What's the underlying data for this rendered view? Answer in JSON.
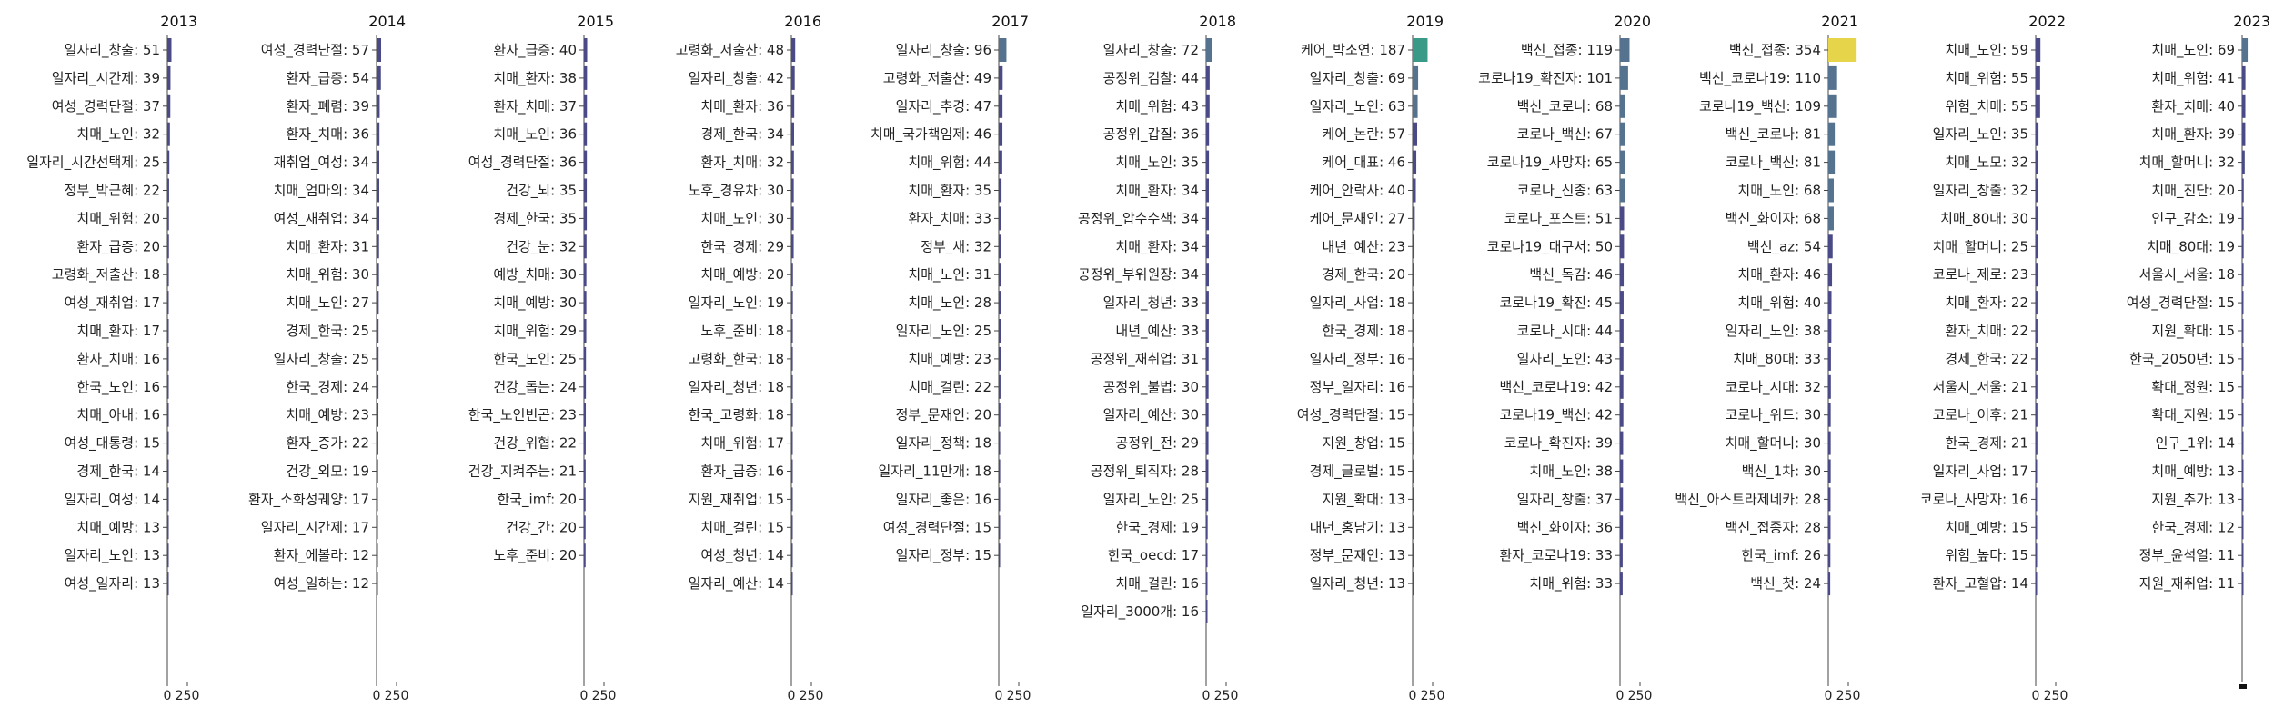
{
  "chart_data": [
    {
      "type": "bar",
      "orientation": "horizontal",
      "title": "2013",
      "categories": [
        "일자리_창출",
        "일자리_시간제",
        "여성_경력단절",
        "치매_노인",
        "일자리_시간선택제",
        "정부_박근혜",
        "치매_위험",
        "환자_급증",
        "고령화_저출산",
        "여성_재취업",
        "치매_환자",
        "환자_치매",
        "한국_노인",
        "치매_아내",
        "여성_대통령",
        "경제_한국",
        "일자리_여성",
        "치매_예방",
        "일자리_노인",
        "여성_일자리"
      ],
      "values": [
        51,
        39,
        37,
        32,
        25,
        22,
        20,
        20,
        18,
        17,
        17,
        16,
        16,
        16,
        15,
        14,
        14,
        13,
        13,
        13
      ],
      "xticks": [
        0,
        250
      ],
      "xlim": [
        0,
        420
      ]
    },
    {
      "type": "bar",
      "orientation": "horizontal",
      "title": "2014",
      "categories": [
        "여성_경력단절",
        "환자_급증",
        "환자_폐렴",
        "환자_치매",
        "재취업_여성",
        "치매_엄마의",
        "여성_재취업",
        "치매_환자",
        "치매_위험",
        "치매_노인",
        "경제_한국",
        "일자리_창출",
        "한국_경제",
        "치매_예방",
        "환자_증가",
        "건강_외모",
        "환자_소화성궤양",
        "일자리_시간제",
        "환자_에볼라",
        "여성_일하는"
      ],
      "values": [
        57,
        54,
        39,
        36,
        34,
        34,
        34,
        31,
        30,
        27,
        25,
        25,
        24,
        23,
        22,
        19,
        17,
        17,
        12,
        12
      ],
      "xticks": [
        0,
        250
      ],
      "xlim": [
        0,
        420
      ]
    },
    {
      "type": "bar",
      "orientation": "horizontal",
      "title": "2015",
      "categories": [
        "환자_급증",
        "치매_환자",
        "환자_치매",
        "치매_노인",
        "여성_경력단절",
        "건강_뇌",
        "경제_한국",
        "건강_눈",
        "예방_치매",
        "치매_예방",
        "치매_위험",
        "한국_노인",
        "건강_돕는",
        "한국_노인빈곤",
        "건강_위협",
        "건강_지켜주는",
        "한국_imf",
        "건강_간",
        "노후_준비"
      ],
      "values": [
        40,
        38,
        37,
        36,
        36,
        35,
        35,
        32,
        30,
        30,
        29,
        25,
        24,
        23,
        22,
        21,
        20,
        20,
        20
      ],
      "xticks": [
        0,
        250
      ],
      "xlim": [
        0,
        420
      ]
    },
    {
      "type": "bar",
      "orientation": "horizontal",
      "title": "2016",
      "categories": [
        "고령화_저출산",
        "일자리_창출",
        "치매_환자",
        "경제_한국",
        "환자_치매",
        "노후_경유차",
        "치매_노인",
        "한국_경제",
        "치매_예방",
        "일자리_노인",
        "노후_준비",
        "고령화_한국",
        "일자리_청년",
        "한국_고령화",
        "치매_위험",
        "환자_급증",
        "지원_재취업",
        "치매_걸린",
        "여성_청년",
        "일자리_예산"
      ],
      "values": [
        48,
        42,
        36,
        34,
        32,
        30,
        30,
        29,
        20,
        19,
        18,
        18,
        18,
        18,
        17,
        16,
        15,
        15,
        14,
        14
      ],
      "xticks": [
        0,
        250
      ],
      "xlim": [
        0,
        420
      ]
    },
    {
      "type": "bar",
      "orientation": "horizontal",
      "title": "2017",
      "categories": [
        "일자리_창출",
        "고령화_저출산",
        "일자리_추경",
        "치매_국가책임제",
        "치매_위험",
        "치매_환자",
        "환자_치매",
        "정부_새",
        "치매_노인",
        "치매_노인",
        "일자리_노인",
        "치매_예방",
        "치매_걸린",
        "정부_문재인",
        "일자리_정책",
        "일자리_11만개",
        "일자리_좋은",
        "여성_경력단절",
        "일자리_정부"
      ],
      "values": [
        96,
        49,
        47,
        46,
        44,
        35,
        33,
        32,
        31,
        28,
        25,
        23,
        22,
        20,
        18,
        18,
        16,
        15,
        15
      ],
      "xticks": [
        0,
        250
      ],
      "xlim": [
        0,
        420
      ]
    },
    {
      "type": "bar",
      "orientation": "horizontal",
      "title": "2018",
      "categories": [
        "일자리_창출",
        "공정위_검찰",
        "치매_위험",
        "공정위_갑질",
        "치매_노인",
        "치매_환자",
        "공정위_압수수색",
        "치매_환자",
        "공정위_부위원장",
        "일자리_청년",
        "내년_예산",
        "공정위_재취업",
        "공정위_불법",
        "일자리_예산",
        "공정위_전",
        "공정위_퇴직자",
        "일자리_노인",
        "한국_경제",
        "한국_oecd",
        "치매_걸린",
        "일자리_3000개"
      ],
      "values": [
        72,
        44,
        43,
        36,
        35,
        34,
        34,
        34,
        34,
        33,
        33,
        31,
        30,
        30,
        29,
        28,
        25,
        19,
        17,
        16,
        16
      ],
      "xticks": [
        0,
        250
      ],
      "xlim": [
        0,
        420
      ]
    },
    {
      "type": "bar",
      "orientation": "horizontal",
      "title": "2019",
      "categories": [
        "케어_박소연",
        "일자리_창출",
        "일자리_노인",
        "케어_논란",
        "케어_대표",
        "케어_안락사",
        "케어_문재인",
        "내년_예산",
        "경제_한국",
        "일자리_사업",
        "한국_경제",
        "일자리_정부",
        "정부_일자리",
        "여성_경력단절",
        "지원_창업",
        "경제_글로벌",
        "지원_확대",
        "내년_홍남기",
        "정부_문재인",
        "일자리_청년"
      ],
      "values": [
        187,
        69,
        63,
        57,
        46,
        40,
        27,
        23,
        20,
        18,
        18,
        16,
        16,
        15,
        15,
        15,
        13,
        13,
        13,
        13
      ],
      "xticks": [
        0,
        250
      ],
      "xlim": [
        0,
        420
      ]
    },
    {
      "type": "bar",
      "orientation": "horizontal",
      "title": "2020",
      "categories": [
        "백신_접종",
        "코로나19_확진자",
        "백신_코로나",
        "코로나_백신",
        "코로나19_사망자",
        "코로나_신종",
        "코로나_포스트",
        "코로나19_대구서",
        "백신_독감",
        "코로나19_확진",
        "코로나_시대",
        "일자리_노인",
        "백신_코로나19",
        "코로나19_백신",
        "코로나_확진자",
        "치매_노인",
        "일자리_창출",
        "백신_화이자",
        "환자_코로나19",
        "치매_위험"
      ],
      "values": [
        119,
        101,
        68,
        67,
        65,
        63,
        51,
        50,
        46,
        45,
        44,
        43,
        42,
        42,
        39,
        38,
        37,
        36,
        33,
        33
      ],
      "xticks": [
        0,
        250
      ],
      "xlim": [
        0,
        420
      ]
    },
    {
      "type": "bar",
      "orientation": "horizontal",
      "title": "2021",
      "categories": [
        "백신_접종",
        "백신_코로나19",
        "코로나19_백신",
        "백신_코로나",
        "코로나_백신",
        "치매_노인",
        "백신_화이자",
        "백신_az",
        "치매_환자",
        "치매_위험",
        "일자리_노인",
        "치매_80대",
        "코로나_시대",
        "코로나_위드",
        "치매_할머니",
        "백신_1차",
        "백신_아스트라제네카",
        "백신_접종자",
        "한국_imf",
        "백신_첫"
      ],
      "values": [
        354,
        110,
        109,
        81,
        81,
        68,
        68,
        54,
        46,
        40,
        38,
        33,
        32,
        30,
        30,
        30,
        28,
        28,
        26,
        24
      ],
      "xticks": [
        0,
        250
      ],
      "xlim": [
        0,
        420
      ]
    },
    {
      "type": "bar",
      "orientation": "horizontal",
      "title": "2022",
      "categories": [
        "치매_노인",
        "치매_위험",
        "위험_치매",
        "일자리_노인",
        "치매_노모",
        "일자리_창출",
        "치매_80대",
        "치매_할머니",
        "코로나_제로",
        "치매_환자",
        "환자_치매",
        "경제_한국",
        "서울시_서울",
        "코로나_이후",
        "한국_경제",
        "일자리_사업",
        "코로나_사망자",
        "치매_예방",
        "위험_높다",
        "환자_고혈압"
      ],
      "values": [
        59,
        55,
        55,
        35,
        32,
        32,
        30,
        25,
        23,
        22,
        22,
        22,
        21,
        21,
        21,
        17,
        16,
        15,
        15,
        14
      ],
      "xticks": [
        0,
        250
      ],
      "xlim": [
        0,
        420
      ]
    },
    {
      "type": "bar",
      "orientation": "horizontal",
      "title": "2023",
      "categories": [
        "치매_노인",
        "치매_위험",
        "환자_치매",
        "치매_환자",
        "치매_할머니",
        "치매_진단",
        "인구_감소",
        "치매_80대",
        "서울시_서울",
        "여성_경력단절",
        "지원_확대",
        "한국_2050년",
        "확대_정원",
        "확대_지원",
        "인구_1위",
        "치매_예방",
        "지원_추가",
        "한국_경제",
        "정부_윤석열",
        "지원_재취업"
      ],
      "values": [
        69,
        41,
        40,
        39,
        32,
        20,
        19,
        19,
        18,
        15,
        15,
        15,
        15,
        15,
        14,
        13,
        13,
        12,
        11,
        11
      ],
      "xticks": [],
      "xlim": [
        0,
        420
      ]
    }
  ],
  "colors": {
    "low": "#4a4a86",
    "mid": "#55738e",
    "teal": "#3a9a88",
    "high": "#e6d54a",
    "text": "#222222",
    "axis": "#444444"
  }
}
